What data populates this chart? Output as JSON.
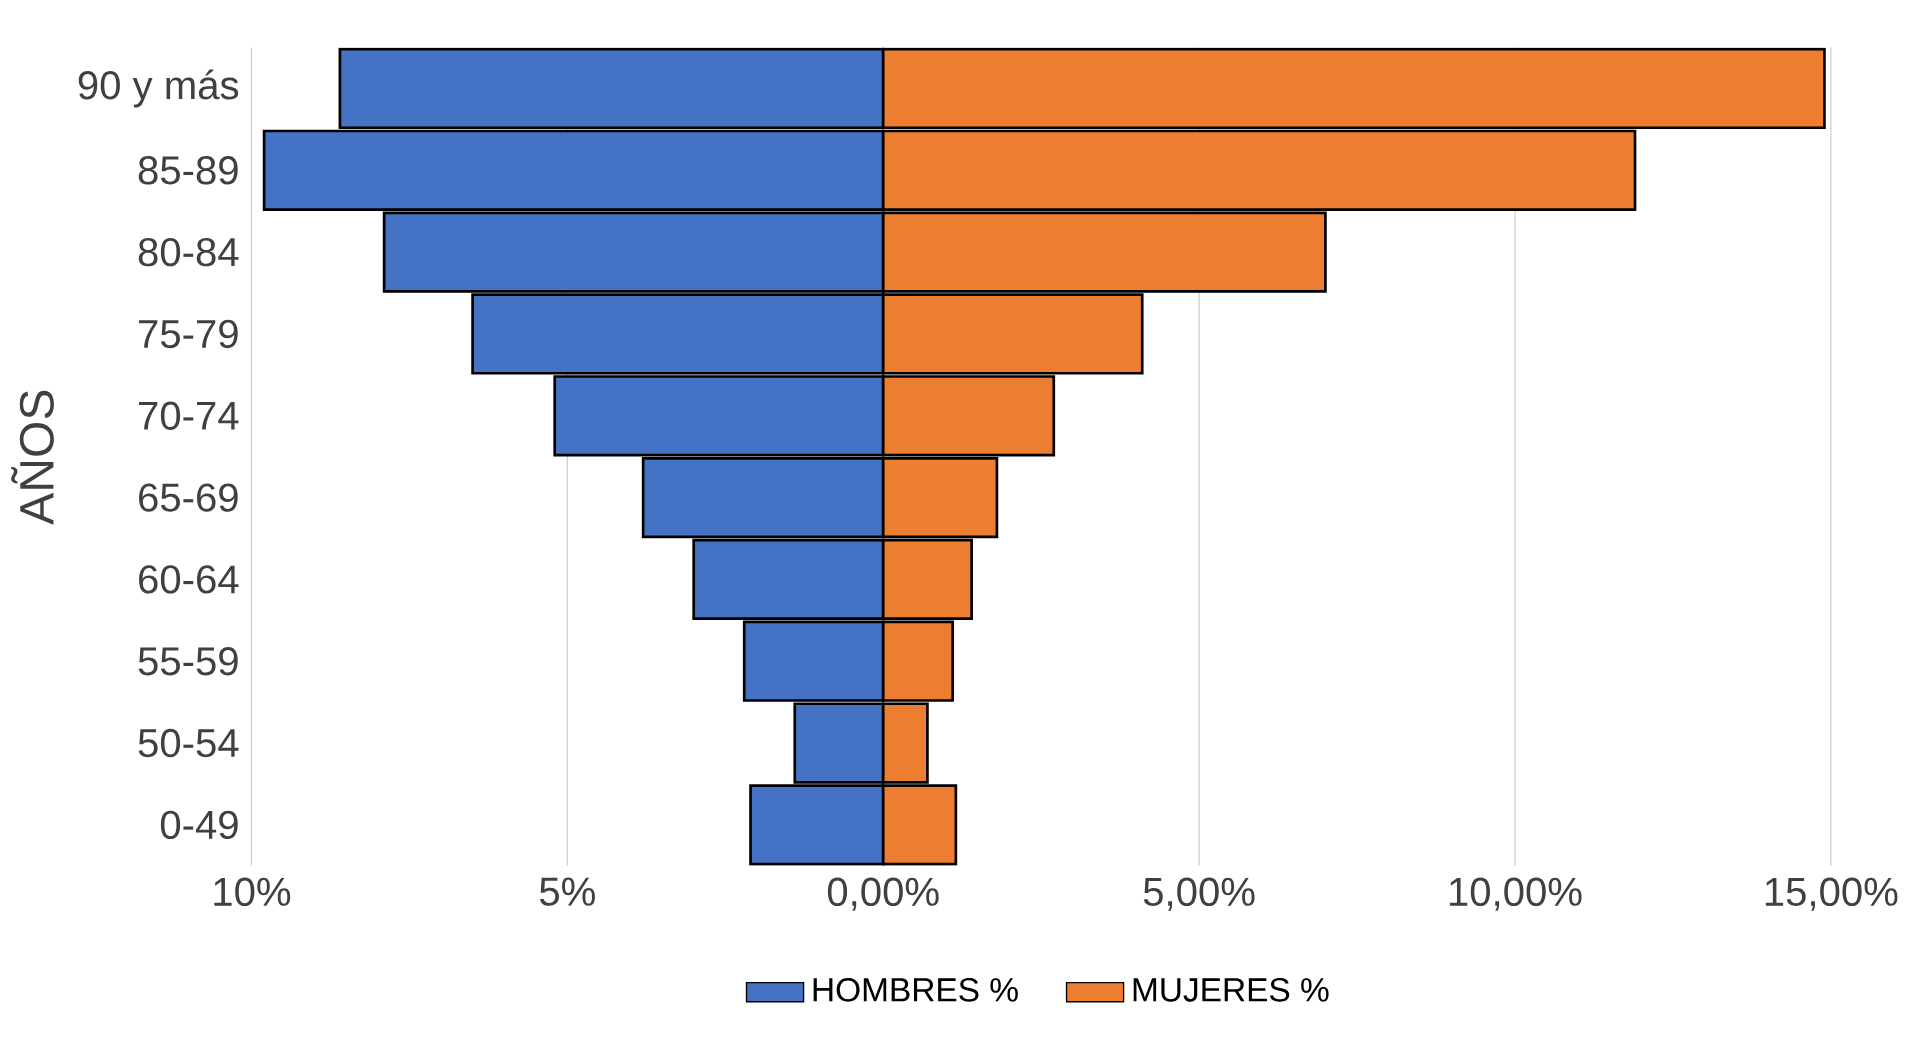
{
  "chart_data": {
    "type": "bar",
    "orientation": "horizontal",
    "stacked": true,
    "ylabel": "AÑOS",
    "categories": [
      "90 y más",
      "85-89",
      "80-84",
      "75-79",
      "70-74",
      "65-69",
      "60-64",
      "55-59",
      "50-54",
      "0-49"
    ],
    "series": [
      {
        "name": "HOMBRES %",
        "color": "#4472c4",
        "values": [
          -8.6,
          -9.8,
          -7.9,
          -6.5,
          -5.2,
          -3.8,
          -3.0,
          -2.2,
          -1.4,
          -2.1
        ]
      },
      {
        "name": "MUJERES %",
        "color": "#ed7d31",
        "values": [
          14.9,
          11.9,
          7.0,
          4.1,
          2.7,
          1.8,
          1.4,
          1.1,
          0.7,
          1.15
        ]
      }
    ],
    "xlim": [
      -10,
      15
    ],
    "xticks": [
      {
        "value": -10,
        "label": "10%"
      },
      {
        "value": -5,
        "label": "5%"
      },
      {
        "value": 0,
        "label": "0,00%"
      },
      {
        "value": 5,
        "label": "5,00%"
      },
      {
        "value": 10,
        "label": "10,00%"
      },
      {
        "value": 15,
        "label": "15,00%"
      }
    ],
    "grid": "x",
    "legend": "bottom"
  }
}
